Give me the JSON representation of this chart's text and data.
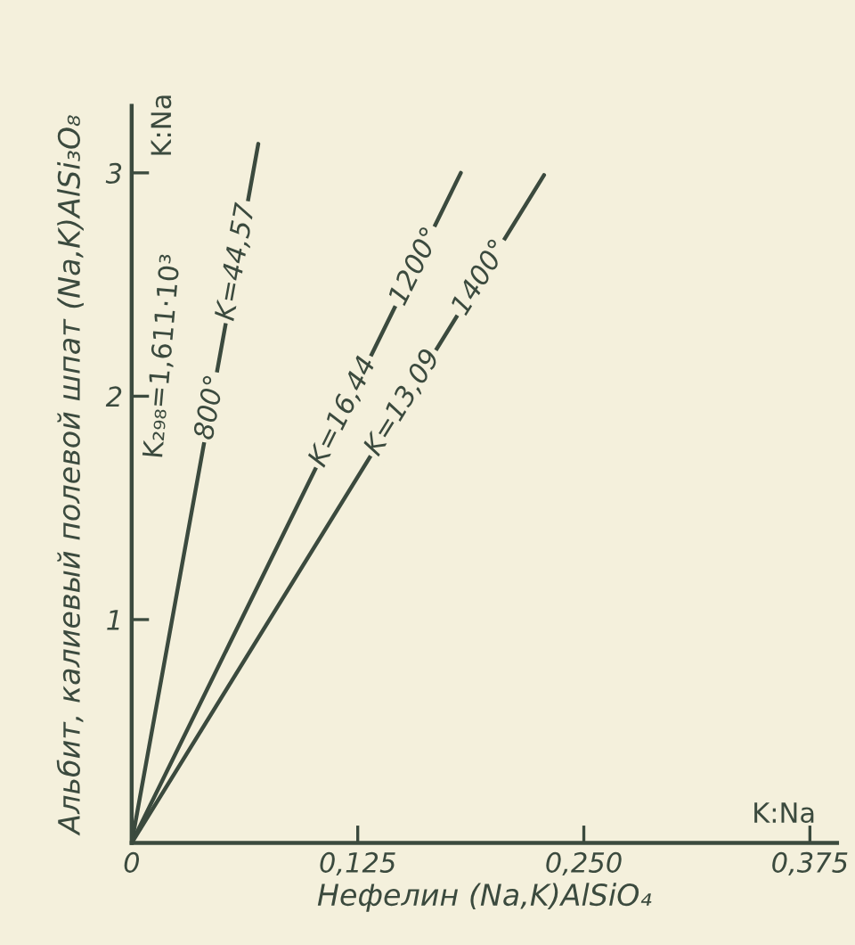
{
  "chart_data": {
    "type": "line",
    "xlabel": "Нефелин (Na,K)AlSiO₄",
    "ylabel": "Альбит, калиевый полевой шпат (Na,K)AlSi₃O₈",
    "series": [
      {
        "color": "#3b4a3e",
        "x": [
          0,
          0.07
        ],
        "values": [
          0,
          3.13
        ]
      },
      {
        "color": "#3b4a3e",
        "x": [
          0,
          0.182
        ],
        "values": [
          0,
          3.0
        ]
      },
      {
        "color": "#3b4a3e",
        "x": [
          0,
          0.228
        ],
        "values": [
          0,
          2.99
        ]
      }
    ],
    "xlim": [
      0,
      0.39
    ],
    "ylim": [
      0,
      3.3
    ],
    "xticks": [
      {
        "value": 0,
        "label": "0"
      },
      {
        "value": 0.125,
        "label": "0,125"
      },
      {
        "value": 0.25,
        "label": "0,250"
      },
      {
        "value": 0.375,
        "label": "0,375"
      }
    ],
    "yticks": [
      1,
      2,
      3
    ],
    "grid": false,
    "legend": false,
    "marker": "none",
    "line_style": "solid",
    "annotations": [
      "K₂₉₈=1,611·10³",
      {
        "text": "800°",
        "x": 0.0437,
        "y": 1.95
      },
      {
        "text": "K=44,57",
        "x": 0.058,
        "y": 2.6
      },
      {
        "text": "K=16,44",
        "x": 0.117,
        "y": 1.93
      },
      {
        "text": "1200°",
        "x": 0.157,
        "y": 2.58
      },
      {
        "text": "K=13,09",
        "x": 0.15,
        "y": 1.97
      },
      {
        "text": "1400°",
        "x": 0.193,
        "y": 2.53
      },
      "K:Na",
      "K:Na"
    ]
  }
}
